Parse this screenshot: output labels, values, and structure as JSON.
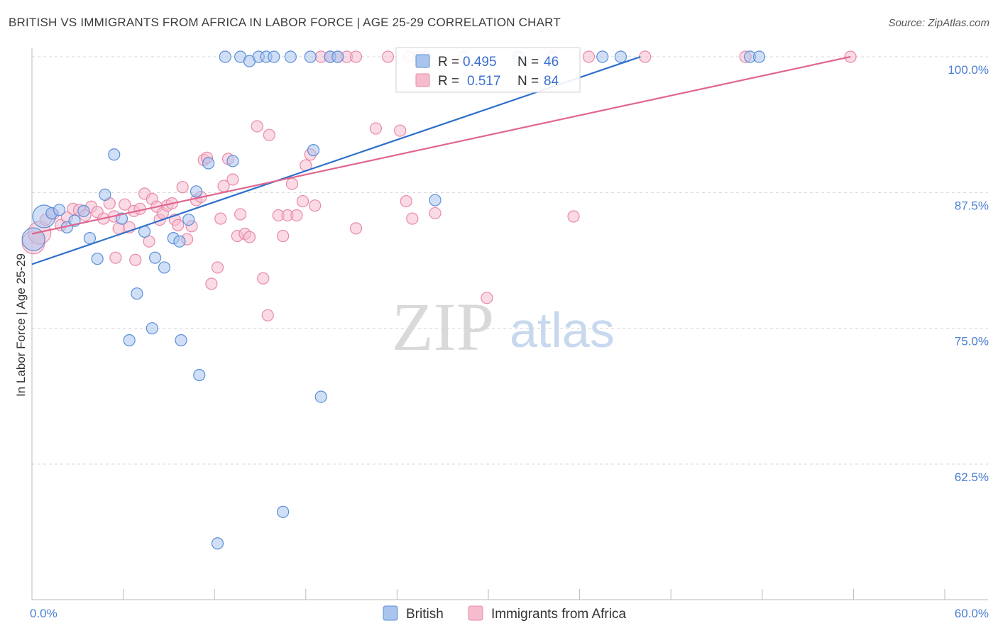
{
  "header": {
    "title": "BRITISH VS IMMIGRANTS FROM AFRICA IN LABOR FORCE | AGE 25-29 CORRELATION CHART",
    "source": "Source: ZipAtlas.com"
  },
  "watermark": {
    "zip": "ZIP",
    "atlas": "atlas"
  },
  "colors": {
    "british_fill": "#a9c5ee",
    "british_stroke": "#5b8fd8",
    "british_line": "#2f6fcc",
    "africa_fill": "#f6bccd",
    "africa_stroke": "#e88aa8",
    "africa_line": "#e0668f",
    "grid": "#d7d7d7",
    "tick_label": "#4a7fd4"
  },
  "chart_data": {
    "type": "scatter",
    "title": "BRITISH VS IMMIGRANTS FROM AFRICA IN LABOR FORCE | AGE 25-29 CORRELATION CHART",
    "xlabel": "",
    "ylabel": "In Labor Force | Age 25-29",
    "xlim": [
      0,
      60
    ],
    "ylim": [
      50,
      100.5
    ],
    "x_tick_labels": [
      "0.0%",
      "60.0%"
    ],
    "y_ticks": [
      62.5,
      75.0,
      87.5,
      100.0
    ],
    "y_tick_labels": [
      "62.5%",
      "75.0%",
      "87.5%",
      "100.0%"
    ],
    "grid": "horizontal dashed",
    "legend_position": "top-center",
    "legend": [
      {
        "name": "British",
        "r_label": "R =",
        "r_value": "0.495",
        "n_label": "N =",
        "n_value": "46"
      },
      {
        "name": "Immigrants from Africa",
        "r_label": "R =",
        "r_value": "0.517",
        "n_label": "N =",
        "n_value": "84"
      }
    ],
    "series": [
      {
        "name": "British",
        "trend": {
          "x": [
            0,
            40.0
          ],
          "y": [
            80.9,
            100.0
          ]
        },
        "points": [
          [
            0.1,
            83.2,
            "large"
          ],
          [
            0.8,
            85.3,
            "large"
          ],
          [
            1.3,
            85.6
          ],
          [
            1.8,
            85.9
          ],
          [
            2.3,
            84.3
          ],
          [
            2.8,
            84.9
          ],
          [
            3.4,
            85.8
          ],
          [
            3.8,
            83.3
          ],
          [
            4.3,
            81.4
          ],
          [
            4.8,
            87.3
          ],
          [
            5.4,
            91.0
          ],
          [
            5.9,
            85.1
          ],
          [
            6.4,
            73.9
          ],
          [
            6.9,
            78.2
          ],
          [
            7.4,
            83.9
          ],
          [
            7.9,
            75.0
          ],
          [
            8.1,
            81.5
          ],
          [
            8.7,
            80.6
          ],
          [
            9.3,
            83.3
          ],
          [
            9.8,
            73.9
          ],
          [
            10.3,
            85.0
          ],
          [
            10.8,
            87.6
          ],
          [
            11.0,
            70.7
          ],
          [
            11.6,
            90.2
          ],
          [
            12.2,
            55.2
          ],
          [
            13.2,
            90.4
          ],
          [
            12.7,
            100.0
          ],
          [
            13.7,
            100.0
          ],
          [
            14.3,
            99.6
          ],
          [
            14.9,
            100.0
          ],
          [
            15.4,
            100.0
          ],
          [
            15.9,
            100.0
          ],
          [
            16.5,
            58.1
          ],
          [
            17.0,
            100.0
          ],
          [
            18.3,
            100.0
          ],
          [
            18.5,
            91.4
          ],
          [
            19.0,
            68.7
          ],
          [
            19.6,
            100.0
          ],
          [
            20.1,
            100.0
          ],
          [
            26.5,
            86.8
          ],
          [
            32.0,
            100.0
          ],
          [
            37.5,
            100.0
          ],
          [
            38.7,
            100.0
          ],
          [
            47.2,
            100.0
          ],
          [
            47.8,
            100.0
          ],
          [
            9.7,
            83.0
          ]
        ]
      },
      {
        "name": "Immigrants from Africa",
        "trend": {
          "x": [
            0,
            53.8
          ],
          "y": [
            83.7,
            100.0
          ]
        },
        "points": [
          [
            0.1,
            82.9,
            "large"
          ],
          [
            0.5,
            83.8,
            "large"
          ],
          [
            0.9,
            85.0
          ],
          [
            1.4,
            85.5
          ],
          [
            1.9,
            84.5
          ],
          [
            2.3,
            85.2
          ],
          [
            2.7,
            86.0
          ],
          [
            3.1,
            85.9
          ],
          [
            3.5,
            85.4
          ],
          [
            3.9,
            86.2
          ],
          [
            4.3,
            85.7
          ],
          [
            4.7,
            85.1
          ],
          [
            5.1,
            86.5
          ],
          [
            5.4,
            85.3
          ],
          [
            5.7,
            84.2
          ],
          [
            5.5,
            81.5
          ],
          [
            6.1,
            86.4
          ],
          [
            6.4,
            84.3
          ],
          [
            6.7,
            85.8
          ],
          [
            6.8,
            81.3
          ],
          [
            7.1,
            86.0
          ],
          [
            7.4,
            87.4
          ],
          [
            7.7,
            83.0
          ],
          [
            7.9,
            86.9
          ],
          [
            8.2,
            86.2
          ],
          [
            8.4,
            85.0
          ],
          [
            8.6,
            85.6
          ],
          [
            8.9,
            86.3
          ],
          [
            9.2,
            86.5
          ],
          [
            9.4,
            85.0
          ],
          [
            9.6,
            84.5
          ],
          [
            9.9,
            88.0
          ],
          [
            10.2,
            83.2
          ],
          [
            10.5,
            84.4
          ],
          [
            10.8,
            86.8
          ],
          [
            11.1,
            87.1
          ],
          [
            11.3,
            90.5
          ],
          [
            11.5,
            90.7
          ],
          [
            11.8,
            79.1
          ],
          [
            12.2,
            80.6
          ],
          [
            12.4,
            85.1
          ],
          [
            12.6,
            88.1
          ],
          [
            12.9,
            90.6
          ],
          [
            13.2,
            88.7
          ],
          [
            13.5,
            83.5
          ],
          [
            13.7,
            85.5
          ],
          [
            14.0,
            83.7
          ],
          [
            14.3,
            83.4
          ],
          [
            14.8,
            93.6
          ],
          [
            15.2,
            79.6
          ],
          [
            15.5,
            76.2
          ],
          [
            15.6,
            92.8
          ],
          [
            16.2,
            85.4
          ],
          [
            16.5,
            83.5
          ],
          [
            16.8,
            85.4
          ],
          [
            17.1,
            88.3
          ],
          [
            17.4,
            85.4
          ],
          [
            17.8,
            86.7
          ],
          [
            18.0,
            90.0
          ],
          [
            18.3,
            91.0
          ],
          [
            18.6,
            86.3
          ],
          [
            19.0,
            100.0
          ],
          [
            19.6,
            100.0
          ],
          [
            20.1,
            100.0
          ],
          [
            20.7,
            100.0
          ],
          [
            21.3,
            100.0
          ],
          [
            21.3,
            84.2
          ],
          [
            22.6,
            93.4
          ],
          [
            23.4,
            100.0
          ],
          [
            24.2,
            93.2
          ],
          [
            24.6,
            86.7
          ],
          [
            25.0,
            85.1
          ],
          [
            24.8,
            100.0
          ],
          [
            25.4,
            100.0
          ],
          [
            25.9,
            100.0
          ],
          [
            26.5,
            85.6
          ],
          [
            28.4,
            100.0
          ],
          [
            29.9,
            77.8
          ],
          [
            34.2,
            100.0
          ],
          [
            35.6,
            85.3
          ],
          [
            36.6,
            100.0
          ],
          [
            40.3,
            100.0
          ],
          [
            46.9,
            100.0
          ],
          [
            53.8,
            100.0
          ]
        ]
      }
    ]
  },
  "bottom_legend": {
    "items": [
      {
        "label": "British"
      },
      {
        "label": "Immigrants from Africa"
      }
    ]
  }
}
